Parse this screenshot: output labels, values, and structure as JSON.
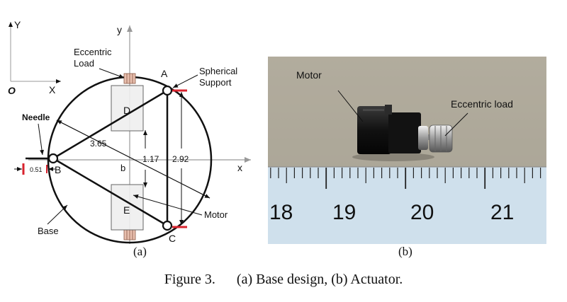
{
  "figure_a": {
    "axis_Y": "Y",
    "axis_X": "X",
    "origin": "O",
    "axis_y": "y",
    "axis_x": "x",
    "eccentric_load": [
      "Eccentric",
      "Load"
    ],
    "spherical_support": [
      "Spherical",
      "Support"
    ],
    "needle": "Needle",
    "node_A": "A",
    "node_B": "B",
    "node_C": "C",
    "node_D": "D",
    "node_E": "E",
    "dim_3_65": "3.65",
    "dim_1_17": "1.17",
    "dim_2_92": "2.92",
    "dim_0_51": "0.51",
    "label_b": "b",
    "motor": "Motor",
    "base": "Base",
    "sub_caption": "(a)"
  },
  "figure_b": {
    "motor": "Motor",
    "eccentric_load": "Eccentric load",
    "ruler_numbers": [
      "18",
      "19",
      "20",
      "21"
    ],
    "sub_caption": "(b)"
  },
  "caption": {
    "number": "Figure 3.",
    "text": "(a) Base design, (b) Actuator."
  },
  "colors": {
    "red_marker": "#d9232e",
    "photo_bg": "#a7a193",
    "ruler": "#cfe0ec"
  }
}
